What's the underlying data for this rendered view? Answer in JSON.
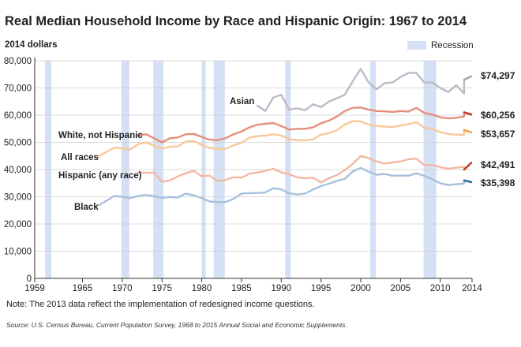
{
  "chart_data": {
    "type": "line",
    "title": "Real Median Household Income by Race and Hispanic Origin: 1967 to 2014",
    "ylabel": "2014 dollars",
    "xlabel": "",
    "xlim": [
      1959,
      2014
    ],
    "ylim": [
      0,
      80000
    ],
    "x_ticks": [
      "1959",
      "1965",
      "1970",
      "1975",
      "1980",
      "1985",
      "1990",
      "1995",
      "2000",
      "2005",
      "2010",
      "2014"
    ],
    "y_ticks": [
      "0",
      "10,000",
      "20,000",
      "30,000",
      "40,000",
      "50,000",
      "60,000",
      "70,000",
      "80,000"
    ],
    "x_tick_values": [
      1959,
      1965,
      1970,
      1975,
      1980,
      1985,
      1990,
      1995,
      2000,
      2005,
      2010,
      2014
    ],
    "y_tick_values": [
      0,
      10000,
      20000,
      30000,
      40000,
      50000,
      60000,
      70000,
      80000
    ],
    "grid": true,
    "legend": {
      "label": "Recession",
      "position": "top-right",
      "color": "#d4e0f3"
    },
    "recessions": [
      [
        1960.3,
        1961.1
      ],
      [
        1969.9,
        1970.9
      ],
      [
        1973.9,
        1975.2
      ],
      [
        1980.0,
        1980.5
      ],
      [
        1981.5,
        1982.9
      ],
      [
        1990.5,
        1991.2
      ],
      [
        2001.2,
        2001.9
      ],
      [
        2007.9,
        2009.5
      ]
    ],
    "series": [
      {
        "name": "Asian",
        "color": "#bcbbc6",
        "end_label": "$74,297",
        "end_marker_color": "#a9a8b4",
        "x": [
          1987,
          1988,
          1989,
          1990,
          1991,
          1992,
          1993,
          1994,
          1995,
          1996,
          1997,
          1998,
          1999,
          2000,
          2001,
          2002,
          2003,
          2004,
          2005,
          2006,
          2007,
          2008,
          2009,
          2010,
          2011,
          2012,
          2013,
          2013.01,
          2014
        ],
        "values": [
          63500,
          61500,
          66500,
          67500,
          62000,
          62500,
          61800,
          64000,
          63000,
          65000,
          66200,
          67500,
          72500,
          77000,
          72000,
          69500,
          71800,
          72000,
          74000,
          75500,
          75500,
          72000,
          72000,
          70000,
          68500,
          71000,
          68000,
          73000,
          74297
        ]
      },
      {
        "name": "White, not Hispanic",
        "color": "#e48f7b",
        "end_label": "$60,256",
        "end_marker_color": "#c9302c",
        "x": [
          1972,
          1973,
          1974,
          1975,
          1976,
          1977,
          1978,
          1979,
          1980,
          1981,
          1982,
          1983,
          1984,
          1985,
          1986,
          1987,
          1988,
          1989,
          1990,
          1991,
          1992,
          1993,
          1994,
          1995,
          1996,
          1997,
          1998,
          1999,
          2000,
          2001,
          2002,
          2003,
          2004,
          2005,
          2006,
          2007,
          2008,
          2009,
          2010,
          2011,
          2012,
          2013,
          2013.01,
          2014
        ],
        "values": [
          52500,
          53000,
          51500,
          50000,
          51500,
          51800,
          53000,
          53100,
          52000,
          51000,
          50800,
          51500,
          53000,
          54000,
          55500,
          56500,
          56800,
          57100,
          56000,
          54700,
          55000,
          55000,
          55500,
          57000,
          58000,
          59500,
          61500,
          62700,
          62800,
          62000,
          61500,
          61400,
          61200,
          61500,
          61300,
          62700,
          60800,
          60200,
          59200,
          58800,
          59000,
          59500,
          61000,
          60256
        ]
      },
      {
        "name": "All races",
        "color": "#f7c99a",
        "end_label": "$53,657",
        "end_marker_color": "#f3a34a",
        "x": [
          1967,
          1968,
          1969,
          1970,
          1971,
          1972,
          1973,
          1974,
          1975,
          1976,
          1977,
          1978,
          1979,
          1980,
          1981,
          1982,
          1983,
          1984,
          1985,
          1986,
          1987,
          1988,
          1989,
          1990,
          1991,
          1992,
          1993,
          1994,
          1995,
          1996,
          1997,
          1998,
          1999,
          2000,
          2001,
          2002,
          2003,
          2004,
          2005,
          2006,
          2007,
          2008,
          2009,
          2010,
          2011,
          2012,
          2013,
          2013.01,
          2014
        ],
        "values": [
          44800,
          46500,
          48000,
          47800,
          47300,
          49300,
          50000,
          48800,
          47700,
          48400,
          48500,
          50300,
          50500,
          49000,
          48000,
          47600,
          47600,
          48900,
          49800,
          51700,
          52300,
          52500,
          53000,
          52500,
          51200,
          50800,
          50700,
          51100,
          52800,
          53400,
          54500,
          56500,
          57800,
          57700,
          56500,
          56000,
          55800,
          55600,
          56200,
          56700,
          57400,
          55400,
          55000,
          53800,
          53100,
          52800,
          52800,
          54500,
          53657
        ]
      },
      {
        "name": "Hispanic (any race)",
        "color": "#f4b8a4",
        "end_label": "$42,491",
        "end_marker_color": "#b9482e",
        "x": [
          1972,
          1973,
          1974,
          1975,
          1976,
          1977,
          1978,
          1979,
          1980,
          1981,
          1982,
          1983,
          1984,
          1985,
          1986,
          1987,
          1988,
          1989,
          1990,
          1991,
          1992,
          1993,
          1994,
          1995,
          1996,
          1997,
          1998,
          1999,
          2000,
          2001,
          2002,
          2003,
          2004,
          2005,
          2006,
          2007,
          2008,
          2009,
          2010,
          2011,
          2012,
          2013,
          2013.01,
          2014
        ],
        "values": [
          38900,
          38800,
          38900,
          35500,
          36000,
          37500,
          38700,
          39500,
          37500,
          37800,
          35700,
          36200,
          37200,
          37000,
          38500,
          38900,
          39500,
          40300,
          39000,
          38300,
          37200,
          36800,
          37000,
          35300,
          36800,
          38000,
          39800,
          42100,
          45000,
          44200,
          43000,
          42200,
          42600,
          43000,
          43800,
          44000,
          41600,
          41700,
          40900,
          40300,
          40700,
          41000,
          40000,
          42491
        ]
      },
      {
        "name": "Black",
        "color": "#a7c1dc",
        "end_label": "$35,398",
        "end_marker_color": "#2f6c98",
        "x": [
          1967,
          1968,
          1969,
          1970,
          1971,
          1972,
          1973,
          1974,
          1975,
          1976,
          1977,
          1978,
          1979,
          1980,
          1981,
          1982,
          1983,
          1984,
          1985,
          1986,
          1987,
          1988,
          1989,
          1990,
          1991,
          1992,
          1993,
          1994,
          1995,
          1996,
          1997,
          1998,
          1999,
          2000,
          2001,
          2002,
          2003,
          2004,
          2005,
          2006,
          2007,
          2008,
          2009,
          2010,
          2011,
          2012,
          2013,
          2013.01,
          2014
        ],
        "values": [
          26800,
          28500,
          30300,
          30000,
          29500,
          30300,
          30700,
          30200,
          29600,
          29900,
          29700,
          31200,
          30500,
          29500,
          28300,
          28000,
          28100,
          29200,
          31200,
          31300,
          31400,
          31600,
          33200,
          32700,
          31300,
          30800,
          31200,
          32700,
          33900,
          34800,
          35800,
          36600,
          39300,
          40600,
          39200,
          38100,
          38400,
          37700,
          37800,
          37700,
          38600,
          37700,
          36400,
          35000,
          34300,
          34600,
          34800,
          36000,
          35398
        ]
      }
    ]
  },
  "labels": {
    "asian": "Asian",
    "white": "White, not Hispanic",
    "all": "All races",
    "hispanic": "Hispanic (any race)",
    "black": "Black"
  },
  "note": "Note: The 2013 data reflect the implementation of redesigned income questions.",
  "source": "Source: U.S. Census Bureau, Current Population Survey, 1968 to 2015 Annual Social and Economic Supplements."
}
